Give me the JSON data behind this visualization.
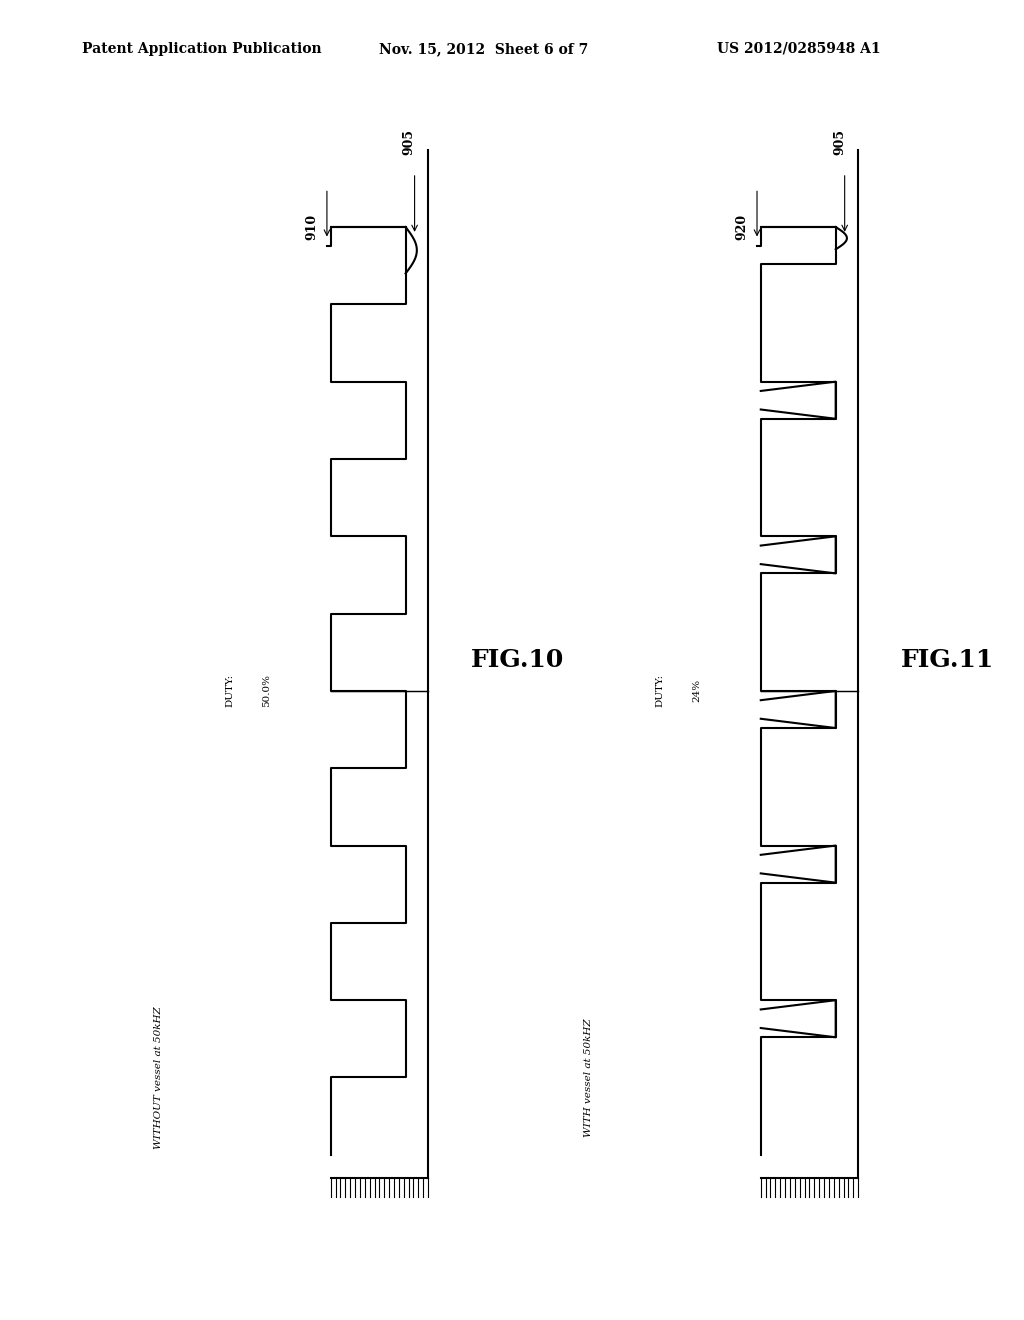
{
  "background_color": "#ffffff",
  "header_text": "Patent Application Publication",
  "header_date": "Nov. 15, 2012  Sheet 6 of 7",
  "header_patent": "US 2012/0285948 A1",
  "fig10_label": "FIG.10",
  "fig11_label": "FIG.11",
  "fig10_annotation_910": "910",
  "fig10_annotation_905": "905",
  "fig10_bottom_label": "WITHOUT vessel at 50kHZ",
  "fig10_duty_label": "DUTY:",
  "fig10_duty_value": "50.0%",
  "fig11_annotation_905": "905",
  "fig11_annotation_920": "920",
  "fig11_bottom_label": "WITH vessel at 50kHZ",
  "fig11_duty_label": "DUTY:",
  "fig11_duty_value": "24%",
  "waveform_color": "#000000",
  "line_width": 1.5,
  "num_pulses": 6
}
